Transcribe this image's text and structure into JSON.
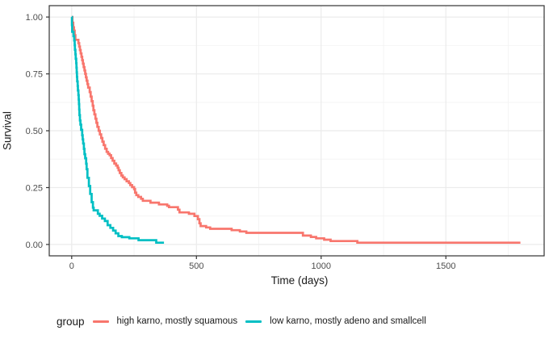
{
  "window": {
    "background": "#ffffff"
  },
  "chart_data": {
    "type": "line",
    "variant": "kaplan_meier_step_survival",
    "title": "",
    "xlabel": "Time (days)",
    "ylabel": "Survival",
    "xlim": [
      -90,
      1894
    ],
    "ylim": [
      -0.05,
      1.05
    ],
    "x_data_range": [
      0,
      1799
    ],
    "y_data_range": [
      0,
      1
    ],
    "x_ticks": [
      0,
      500,
      1000,
      1500
    ],
    "x_tick_labels": [
      "0",
      "500",
      "1000",
      "1500"
    ],
    "x_minor_ticks": [
      250,
      750,
      1250,
      1750
    ],
    "y_ticks": [
      0,
      0.25,
      0.5,
      0.75,
      1
    ],
    "y_tick_labels": [
      "0.00",
      "0.25",
      "0.50",
      "0.75",
      "1.00"
    ],
    "y_minor_ticks": [
      0.125,
      0.375,
      0.625,
      0.875
    ],
    "grid": true,
    "legend": {
      "title": "group",
      "position": "bottom"
    },
    "panel": {
      "background": "#ffffff",
      "border_color": "#333333",
      "grid_major_color": "#ebebeb",
      "grid_minor_color": "#f3f3f3",
      "tick_color": "#333333",
      "axis_text_color": "#4d4d4d"
    },
    "series": [
      {
        "name": "high karno, mostly squamous",
        "color": "#F8766D",
        "points": [
          [
            0,
            1.0
          ],
          [
            3,
            0.975
          ],
          [
            6,
            0.955
          ],
          [
            9,
            0.94
          ],
          [
            12,
            0.92
          ],
          [
            15,
            0.9
          ],
          [
            27,
            0.885
          ],
          [
            30,
            0.87
          ],
          [
            33,
            0.855
          ],
          [
            36,
            0.84
          ],
          [
            39,
            0.825
          ],
          [
            42,
            0.81
          ],
          [
            45,
            0.795
          ],
          [
            48,
            0.78
          ],
          [
            51,
            0.765
          ],
          [
            54,
            0.75
          ],
          [
            57,
            0.735
          ],
          [
            60,
            0.72
          ],
          [
            63,
            0.705
          ],
          [
            66,
            0.69
          ],
          [
            72,
            0.67
          ],
          [
            76,
            0.65
          ],
          [
            80,
            0.63
          ],
          [
            84,
            0.61
          ],
          [
            87,
            0.59
          ],
          [
            91,
            0.572
          ],
          [
            95,
            0.553
          ],
          [
            99,
            0.535
          ],
          [
            103,
            0.517
          ],
          [
            108,
            0.5
          ],
          [
            113,
            0.484
          ],
          [
            118,
            0.468
          ],
          [
            123,
            0.452
          ],
          [
            128,
            0.437
          ],
          [
            134,
            0.421
          ],
          [
            140,
            0.407
          ],
          [
            146,
            0.399
          ],
          [
            152,
            0.392
          ],
          [
            158,
            0.38
          ],
          [
            164,
            0.368
          ],
          [
            171,
            0.356
          ],
          [
            178,
            0.347
          ],
          [
            184,
            0.337
          ],
          [
            188,
            0.326
          ],
          [
            193,
            0.314
          ],
          [
            199,
            0.303
          ],
          [
            205,
            0.295
          ],
          [
            212,
            0.287
          ],
          [
            220,
            0.278
          ],
          [
            229,
            0.27
          ],
          [
            235,
            0.261
          ],
          [
            242,
            0.252
          ],
          [
            250,
            0.243
          ],
          [
            254,
            0.228
          ],
          [
            259,
            0.217
          ],
          [
            267,
            0.209
          ],
          [
            278,
            0.201
          ],
          [
            285,
            0.192
          ],
          [
            316,
            0.184
          ],
          [
            350,
            0.176
          ],
          [
            383,
            0.17
          ],
          [
            390,
            0.164
          ],
          [
            426,
            0.153
          ],
          [
            432,
            0.141
          ],
          [
            470,
            0.135
          ],
          [
            492,
            0.125
          ],
          [
            506,
            0.111
          ],
          [
            512,
            0.093
          ],
          [
            517,
            0.081
          ],
          [
            539,
            0.075
          ],
          [
            555,
            0.069
          ],
          [
            641,
            0.063
          ],
          [
            674,
            0.057
          ],
          [
            700,
            0.051
          ],
          [
            927,
            0.039
          ],
          [
            959,
            0.033
          ],
          [
            980,
            0.027
          ],
          [
            1012,
            0.021
          ],
          [
            1038,
            0.015
          ],
          [
            1145,
            0.008
          ],
          [
            1799,
            0.008
          ]
        ]
      },
      {
        "name": "low karno, mostly adeno and smallcell",
        "color": "#00BFC4",
        "points": [
          [
            0,
            1.0
          ],
          [
            1,
            0.964
          ],
          [
            2,
            0.935
          ],
          [
            7,
            0.916
          ],
          [
            10,
            0.897
          ],
          [
            12,
            0.876
          ],
          [
            13,
            0.856
          ],
          [
            15,
            0.836
          ],
          [
            16,
            0.816
          ],
          [
            18,
            0.797
          ],
          [
            19,
            0.777
          ],
          [
            20,
            0.757
          ],
          [
            21,
            0.737
          ],
          [
            22,
            0.717
          ],
          [
            24,
            0.697
          ],
          [
            25,
            0.677
          ],
          [
            27,
            0.657
          ],
          [
            28,
            0.637
          ],
          [
            29,
            0.617
          ],
          [
            30,
            0.593
          ],
          [
            31,
            0.569
          ],
          [
            33,
            0.545
          ],
          [
            35,
            0.527
          ],
          [
            38,
            0.504
          ],
          [
            42,
            0.48
          ],
          [
            44,
            0.462
          ],
          [
            46,
            0.444
          ],
          [
            49,
            0.42
          ],
          [
            51,
            0.397
          ],
          [
            54,
            0.379
          ],
          [
            58,
            0.355
          ],
          [
            60,
            0.331
          ],
          [
            63,
            0.293
          ],
          [
            69,
            0.257
          ],
          [
            74,
            0.222
          ],
          [
            80,
            0.186
          ],
          [
            85,
            0.162
          ],
          [
            88,
            0.15
          ],
          [
            105,
            0.135
          ],
          [
            112,
            0.126
          ],
          [
            122,
            0.114
          ],
          [
            133,
            0.103
          ],
          [
            144,
            0.085
          ],
          [
            155,
            0.073
          ],
          [
            166,
            0.061
          ],
          [
            176,
            0.049
          ],
          [
            187,
            0.037
          ],
          [
            201,
            0.032
          ],
          [
            231,
            0.027
          ],
          [
            268,
            0.019
          ],
          [
            339,
            0.008
          ],
          [
            370,
            0.008
          ]
        ]
      }
    ]
  }
}
